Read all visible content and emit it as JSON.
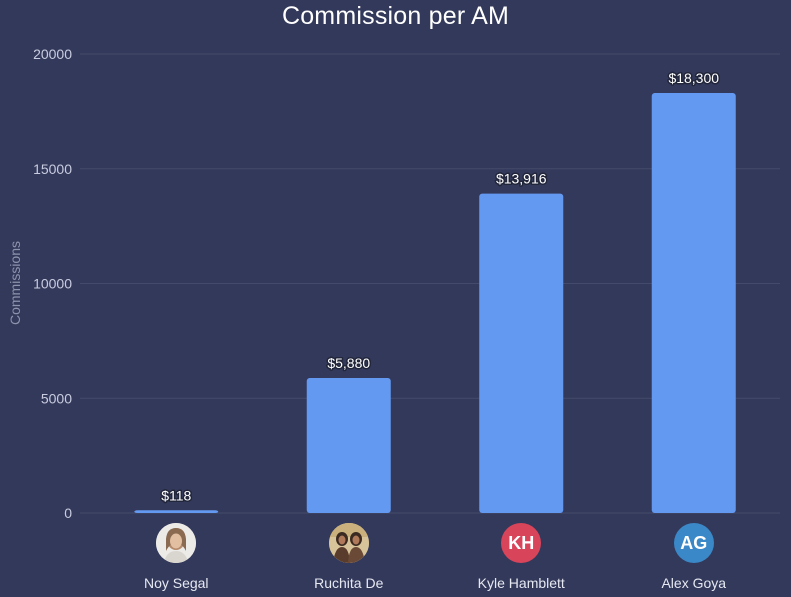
{
  "chart_data": {
    "type": "bar",
    "title": "Commission per AM",
    "ylabel": "Commissions",
    "xlabel": "",
    "ylim": [
      0,
      20000
    ],
    "yticks": [
      0,
      5000,
      10000,
      15000,
      20000
    ],
    "grid": true,
    "categories": [
      "Noy Segal",
      "Ruchita De",
      "Kyle Hamblett",
      "Alex Goya"
    ],
    "values": [
      118,
      5880,
      13916,
      18300
    ],
    "data_labels": [
      "$118",
      "$5,880",
      "$13,916",
      "$18,300"
    ],
    "bar_color": "#6499f2"
  },
  "people": [
    {
      "name": "Noy Segal",
      "avatar": "photo",
      "initials": "",
      "color": "#e8e6e3"
    },
    {
      "name": "Ruchita De",
      "avatar": "photo",
      "initials": "",
      "color": "#cfb88a"
    },
    {
      "name": "Kyle Hamblett",
      "avatar": "initials",
      "initials": "KH",
      "color": "#d8455a"
    },
    {
      "name": "Alex Goya",
      "avatar": "initials",
      "initials": "AG",
      "color": "#3b88c8"
    }
  ],
  "colors": {
    "background": "#33395a",
    "gridline": "#444a6b",
    "tick_text": "#c9cce0",
    "axis_label": "#8e93ad"
  }
}
